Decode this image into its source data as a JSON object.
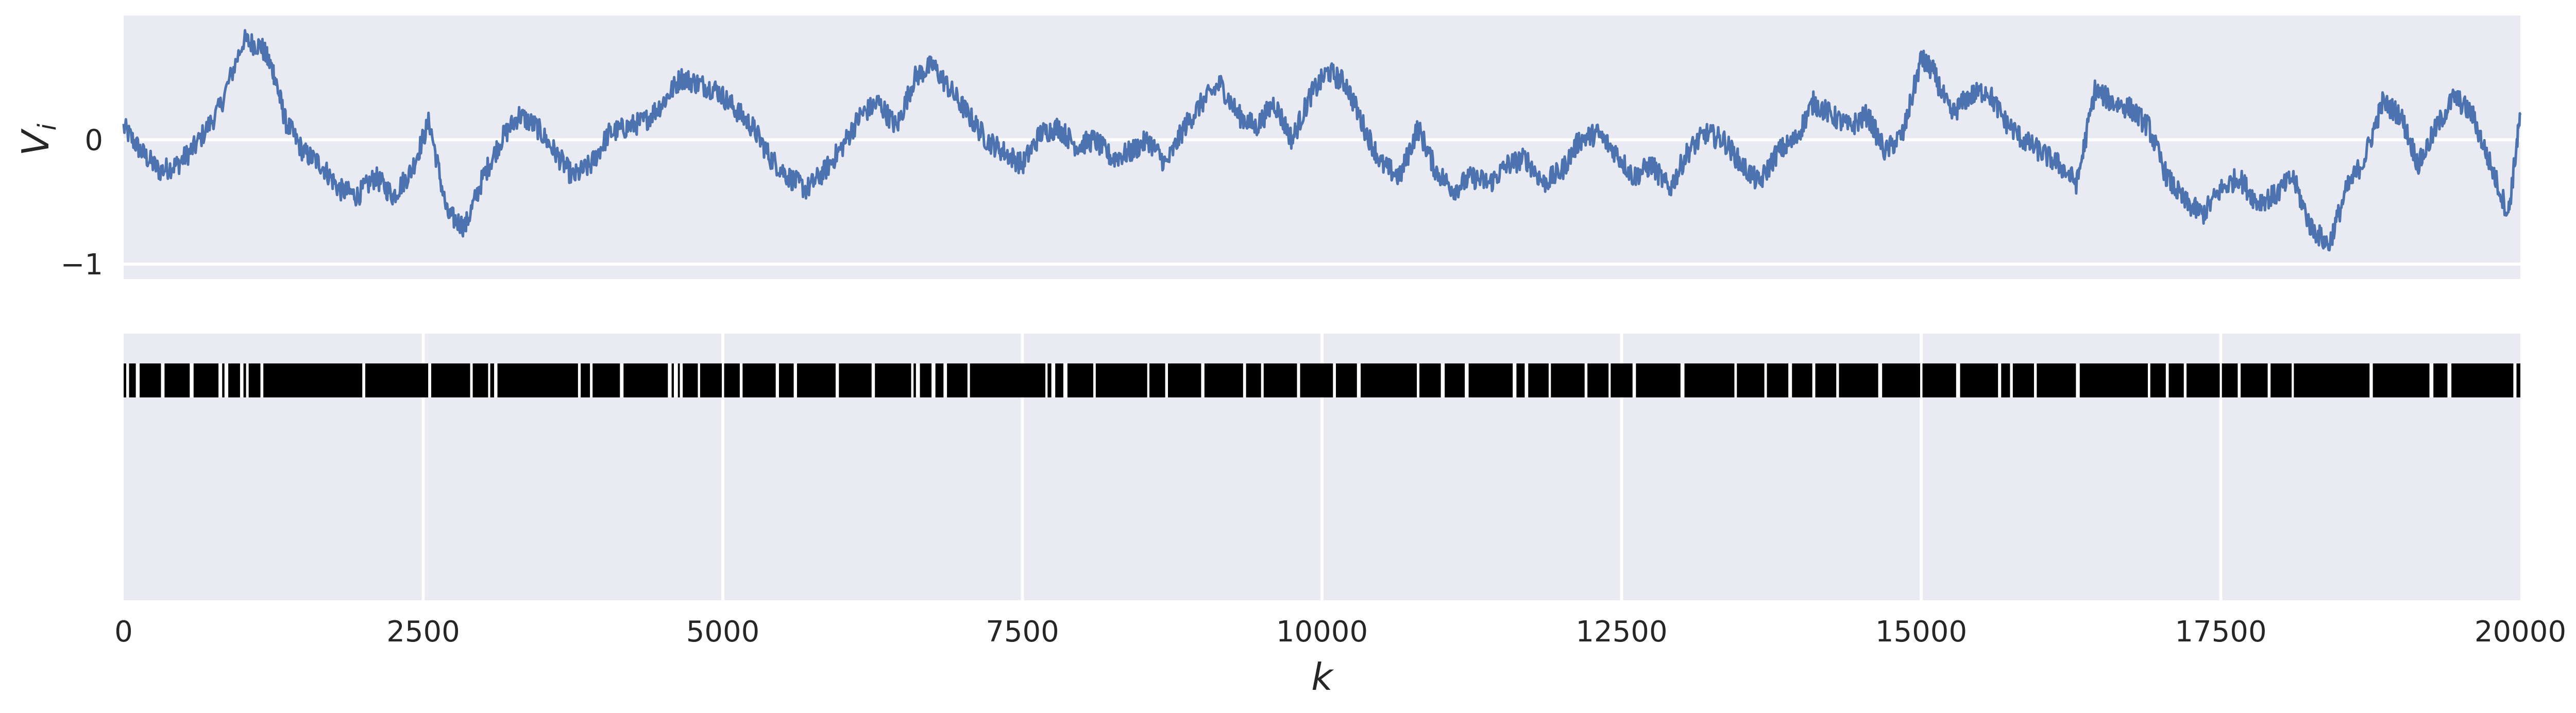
{
  "chart_data": [
    {
      "type": "line",
      "panel": "top",
      "ylabel": "V",
      "ylabel_subscript": "i",
      "xlim": [
        0,
        20000
      ],
      "ylim": [
        -1.12,
        1.0
      ],
      "yticks": [
        -1,
        0
      ],
      "ytick_labels": [
        "−1",
        "0"
      ],
      "grid": true,
      "background": "#eaeaf2",
      "series": [
        {
          "color": "#4c72b0",
          "x": [
            0,
            150,
            300,
            450,
            600,
            800,
            1000,
            1150,
            1250,
            1350,
            1500,
            1650,
            1800,
            1950,
            2100,
            2250,
            2400,
            2550,
            2700,
            2850,
            3000,
            3150,
            3300,
            3450,
            3600,
            3750,
            3900,
            4050,
            4200,
            4350,
            4500,
            4650,
            4800,
            4950,
            5100,
            5250,
            5400,
            5550,
            5700,
            5850,
            6000,
            6150,
            6300,
            6450,
            6600,
            6750,
            6900,
            7050,
            7200,
            7350,
            7500,
            7650,
            7800,
            7950,
            8100,
            8250,
            8400,
            8550,
            8700,
            8850,
            9000,
            9150,
            9300,
            9450,
            9600,
            9750,
            9900,
            10050,
            10200,
            10350,
            10500,
            10650,
            10800,
            10950,
            11100,
            11250,
            11400,
            11550,
            11700,
            11850,
            12000,
            12150,
            12300,
            12450,
            12600,
            12750,
            12900,
            13050,
            13200,
            13350,
            13500,
            13650,
            13800,
            13950,
            14100,
            14250,
            14400,
            14550,
            14700,
            14850,
            15000,
            15100,
            15250,
            15400,
            15550,
            15700,
            15850,
            16000,
            16150,
            16300,
            16450,
            16600,
            16750,
            16900,
            17050,
            17200,
            17350,
            17500,
            17650,
            17800,
            17950,
            18100,
            18250,
            18400,
            18550,
            18700,
            18850,
            19000,
            19150,
            19300,
            19450,
            19600,
            19750,
            19900,
            20000
          ],
          "values": [
            0.1,
            -0.1,
            -0.25,
            -0.2,
            -0.05,
            0.25,
            0.8,
            0.75,
            0.55,
            0.15,
            -0.1,
            -0.2,
            -0.4,
            -0.45,
            -0.3,
            -0.45,
            -0.25,
            0.15,
            -0.6,
            -0.7,
            -0.3,
            0.0,
            0.2,
            0.1,
            -0.1,
            -0.3,
            -0.2,
            0.05,
            0.1,
            0.15,
            0.3,
            0.5,
            0.45,
            0.4,
            0.25,
            0.1,
            -0.15,
            -0.3,
            -0.4,
            -0.25,
            -0.05,
            0.2,
            0.3,
            0.1,
            0.5,
            0.6,
            0.4,
            0.2,
            0.0,
            -0.1,
            -0.2,
            0.05,
            0.1,
            -0.05,
            0.0,
            -0.15,
            -0.1,
            0.0,
            -0.2,
            0.1,
            0.3,
            0.45,
            0.2,
            0.1,
            0.3,
            0.0,
            0.35,
            0.55,
            0.45,
            0.1,
            -0.2,
            -0.3,
            0.1,
            -0.25,
            -0.4,
            -0.3,
            -0.35,
            -0.2,
            -0.15,
            -0.35,
            -0.25,
            0.0,
            0.05,
            -0.1,
            -0.3,
            -0.2,
            -0.4,
            -0.1,
            0.05,
            0.0,
            -0.2,
            -0.35,
            -0.1,
            0.0,
            0.3,
            0.2,
            0.1,
            0.2,
            -0.1,
            0.05,
            0.65,
            0.55,
            0.2,
            0.35,
            0.4,
            0.15,
            0.0,
            -0.1,
            -0.2,
            -0.35,
            0.4,
            0.3,
            0.25,
            0.1,
            -0.3,
            -0.5,
            -0.6,
            -0.4,
            -0.3,
            -0.5,
            -0.45,
            -0.3,
            -0.7,
            -0.85,
            -0.4,
            -0.15,
            0.3,
            0.2,
            -0.2,
            0.1,
            0.35,
            0.2,
            -0.2,
            -0.6,
            0.2
          ]
        }
      ]
    },
    {
      "type": "event-raster",
      "panel": "bottom",
      "xlabel": "k",
      "xlim": [
        0,
        20000
      ],
      "xticks": [
        0,
        2500,
        5000,
        7500,
        10000,
        12500,
        15000,
        17500,
        20000
      ],
      "xtick_labels": [
        "0",
        "2500",
        "5000",
        "7500",
        "10000",
        "12500",
        "15000",
        "17500",
        "20000"
      ],
      "grid": true,
      "background": "#eaeaf2",
      "events_color": "#000000",
      "gaps": [
        30,
        110,
        320,
        560,
        800,
        850,
        980,
        1030,
        1150,
        2000,
        2550,
        2900,
        3050,
        3100,
        3800,
        3900,
        4150,
        4550,
        4600,
        4650,
        4800,
        5000,
        5150,
        5450,
        5600,
        5950,
        6250,
        6580,
        6620,
        6750,
        6850,
        7050,
        7700,
        7750,
        7850,
        8100,
        8550,
        8700,
        9000,
        9350,
        9500,
        9800,
        10100,
        10300,
        10800,
        11000,
        11200,
        11600,
        11700,
        11900,
        12200,
        12400,
        12600,
        13000,
        13450,
        13700,
        13900,
        14100,
        14300,
        14650,
        15000,
        15300,
        15650,
        15750,
        15950,
        16300,
        16900,
        17050,
        17200,
        17500,
        17650,
        17900,
        18100,
        18750,
        19250,
        19400,
        19950
      ]
    }
  ]
}
